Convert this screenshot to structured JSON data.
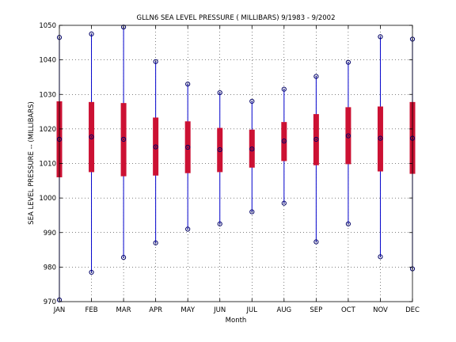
{
  "chart_data": {
    "type": "range-box",
    "title": "GLLN6  SEA LEVEL PRESSURE ( MILLIBARS) 9/1983 - 9/2002",
    "xlabel": "Month",
    "ylabel": "SEA LEVEL PRESSURE -- (MILLIBARS)",
    "ylim": [
      970,
      1050
    ],
    "yticks": [
      970,
      980,
      990,
      1000,
      1010,
      1020,
      1030,
      1040,
      1050
    ],
    "grid": true,
    "categories": [
      "JAN",
      "FEB",
      "MAR",
      "APR",
      "MAY",
      "JUN",
      "JUL",
      "AUG",
      "SEP",
      "OCT",
      "NOV",
      "DEC"
    ],
    "series": [
      {
        "min": [
          970.5,
          978.5,
          982.8,
          987.0,
          991.0,
          992.5,
          996.0,
          998.5,
          987.3,
          992.5,
          983.0,
          979.5
        ],
        "max": [
          1046.5,
          1047.5,
          1049.5,
          1039.5,
          1033.0,
          1030.5,
          1028.0,
          1031.5,
          1035.2,
          1039.3,
          1046.7,
          1046.0
        ],
        "mean": [
          1017.0,
          1017.7,
          1017.0,
          1014.8,
          1014.7,
          1014.0,
          1014.2,
          1016.5,
          1017.0,
          1018.0,
          1017.3,
          1017.3
        ],
        "lower": [
          1006.0,
          1007.5,
          1006.3,
          1006.5,
          1007.2,
          1007.5,
          1008.8,
          1010.7,
          1009.5,
          1009.8,
          1007.7,
          1007.0
        ],
        "upper": [
          1028.0,
          1027.8,
          1027.5,
          1023.3,
          1022.2,
          1020.3,
          1019.8,
          1022.0,
          1024.3,
          1026.3,
          1026.5,
          1027.8
        ]
      }
    ],
    "colors": {
      "whisker": "#0000cc",
      "marker": "#000066",
      "box": "#cc1133",
      "grid": "#000000"
    }
  }
}
